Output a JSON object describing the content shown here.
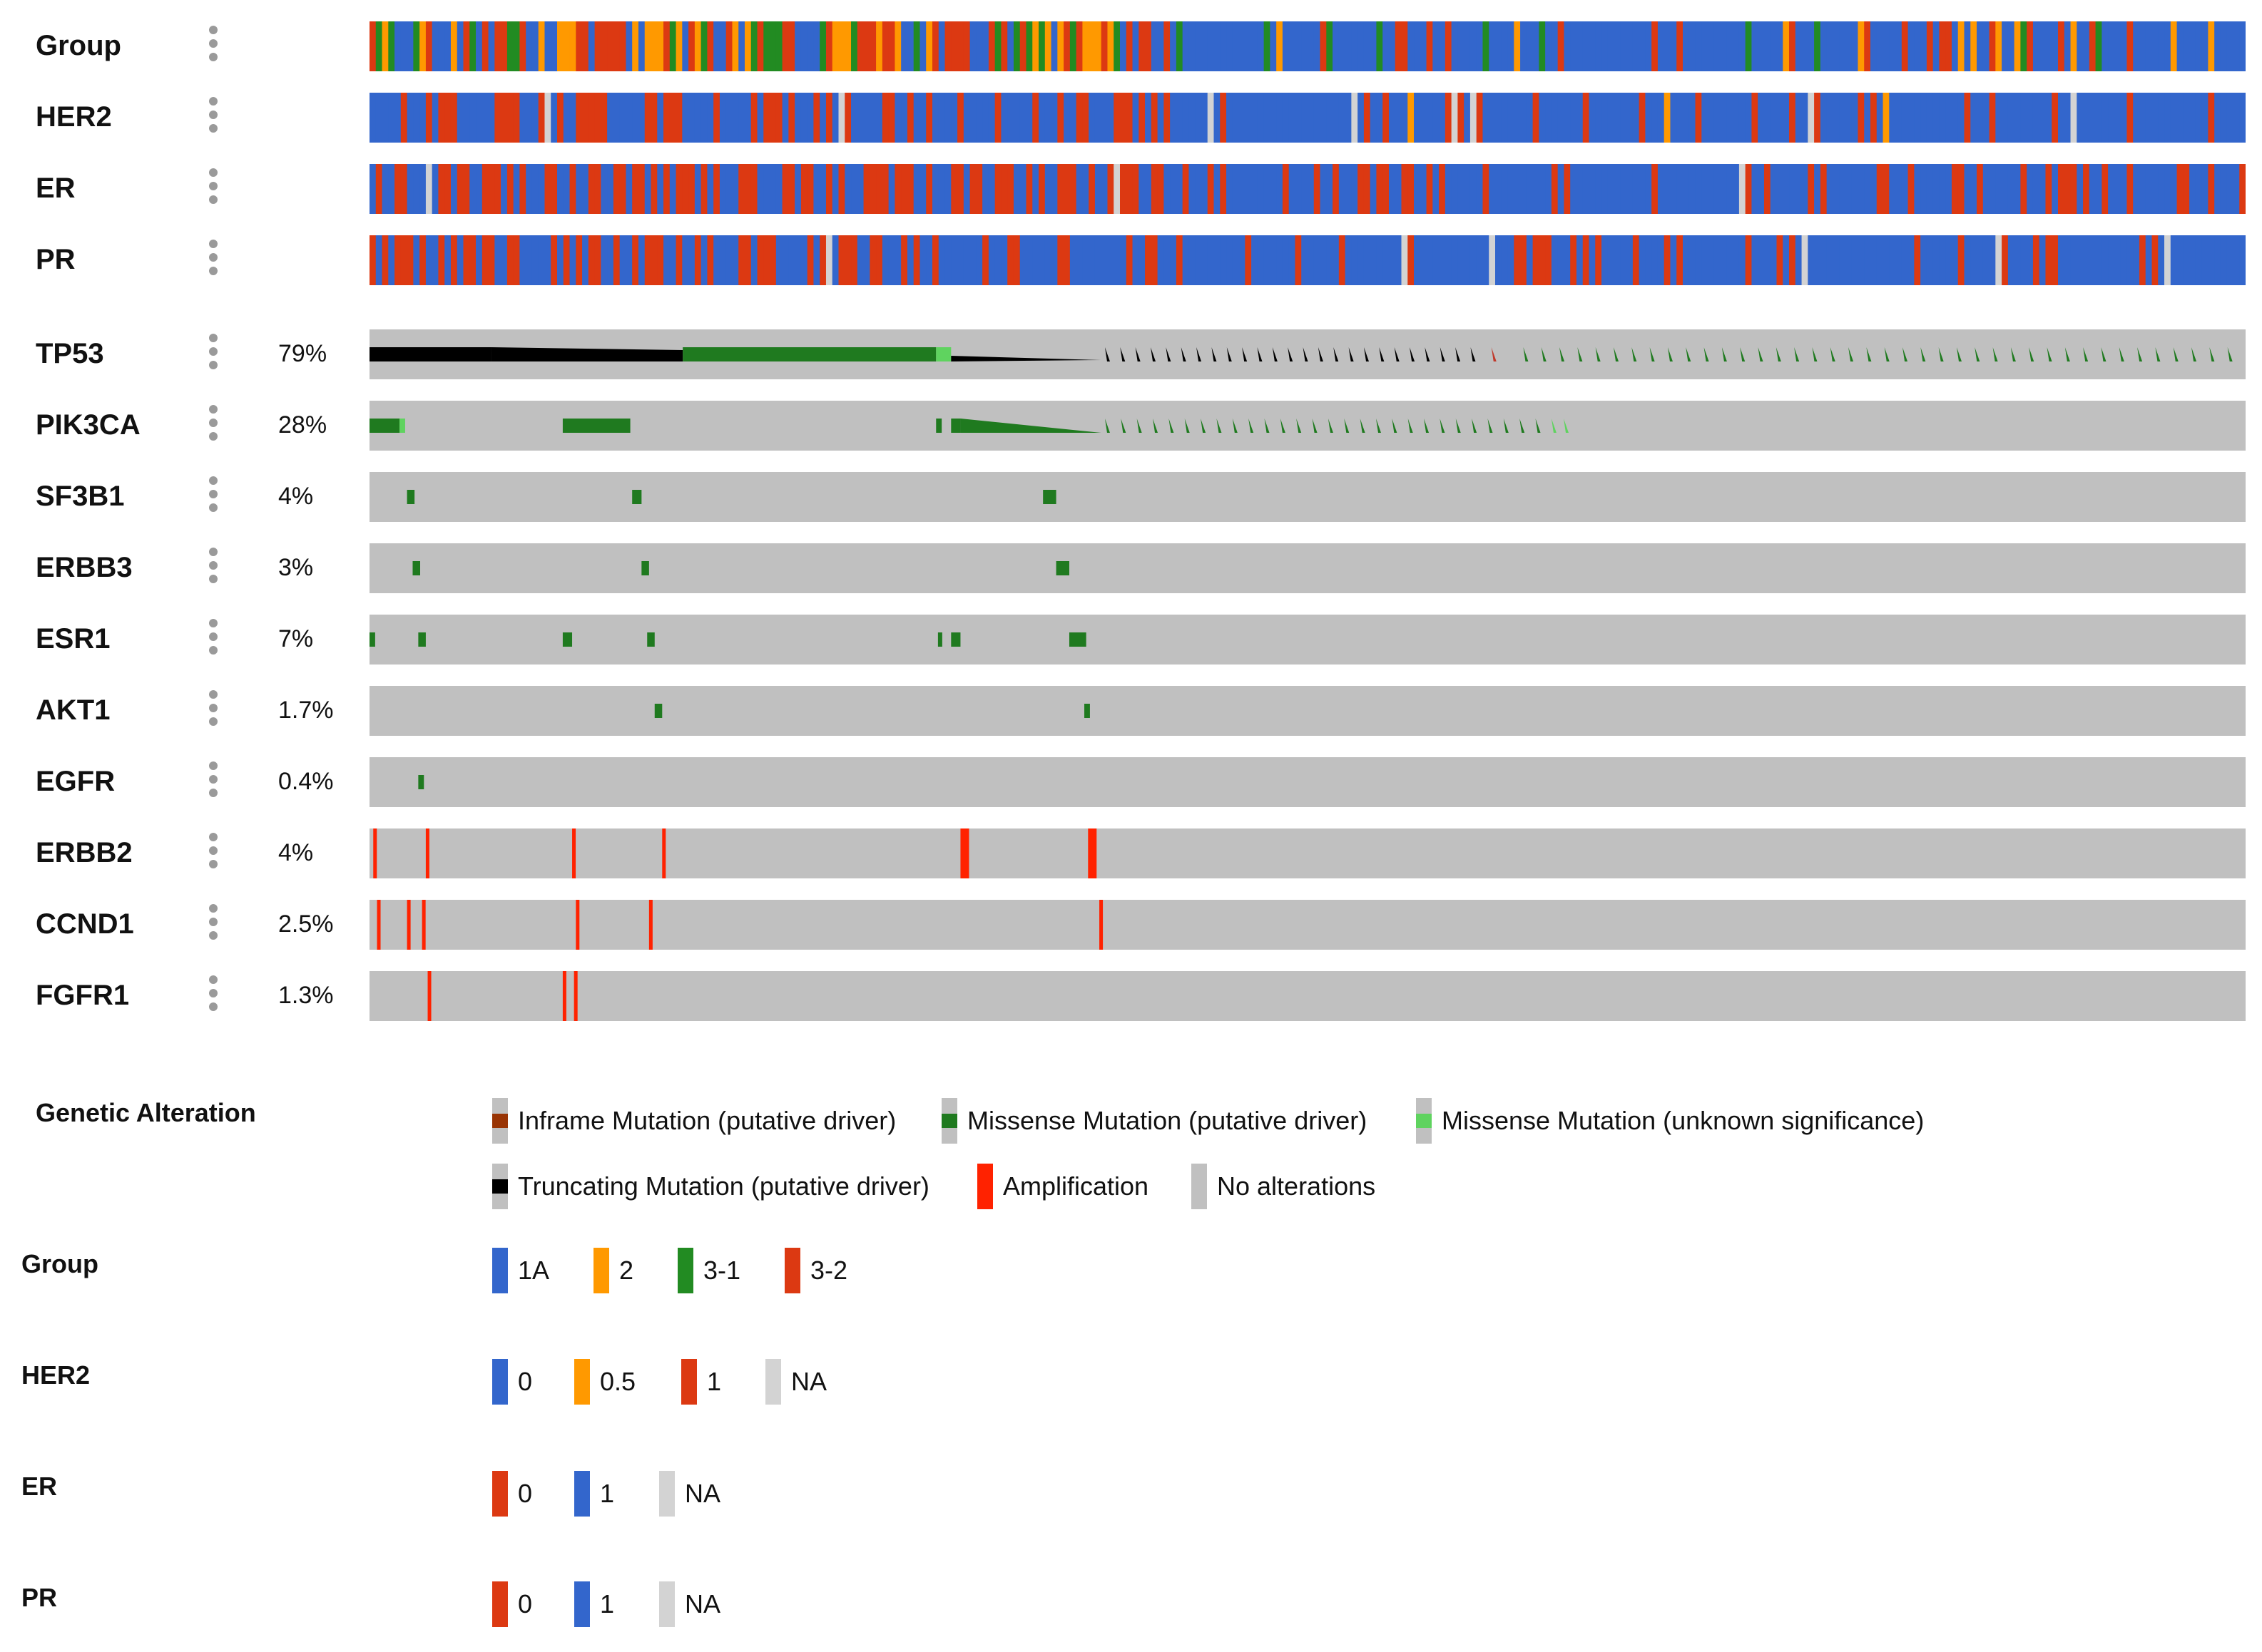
{
  "chart_data": {
    "type": "heatmap",
    "title": "",
    "clinical_tracks": [
      {
        "name": "Group"
      },
      {
        "name": "HER2"
      },
      {
        "name": "ER"
      },
      {
        "name": "PR"
      }
    ],
    "genes": [
      {
        "name": "TP53",
        "pct": "79%"
      },
      {
        "name": "PIK3CA",
        "pct": "28%"
      },
      {
        "name": "SF3B1",
        "pct": "4%"
      },
      {
        "name": "ERBB3",
        "pct": "3%"
      },
      {
        "name": "ESR1",
        "pct": "7%"
      },
      {
        "name": "AKT1",
        "pct": "1.7%"
      },
      {
        "name": "EGFR",
        "pct": "0.4%"
      },
      {
        "name": "ERBB2",
        "pct": "4%"
      },
      {
        "name": "CCND1",
        "pct": "2.5%"
      },
      {
        "name": "FGFR1",
        "pct": "1.3%"
      }
    ],
    "legend": {
      "genetic_alteration": {
        "title": "Genetic Alteration",
        "items": [
          {
            "label": "Inframe Mutation (putative driver)",
            "color": "#993404",
            "kind": "small"
          },
          {
            "label": "Missense Mutation (putative driver)",
            "color": "#1f7a1f",
            "kind": "small"
          },
          {
            "label": "Missense Mutation (unknown significance)",
            "color": "#5fd35f",
            "kind": "small"
          },
          {
            "label": "Truncating Mutation (putative driver)",
            "color": "#000000",
            "kind": "small"
          },
          {
            "label": "Amplification",
            "color": "#ff2200",
            "kind": "full"
          },
          {
            "label": "No alterations",
            "color": "#c0c0c0",
            "kind": "full"
          }
        ]
      },
      "group": {
        "title": "Group",
        "items": [
          {
            "label": "1A",
            "color": "#3366cc"
          },
          {
            "label": "2",
            "color": "#ff9900"
          },
          {
            "label": "3-1",
            "color": "#228b22"
          },
          {
            "label": "3-2",
            "color": "#dc3912"
          }
        ]
      },
      "her2": {
        "title": "HER2",
        "items": [
          {
            "label": "0",
            "color": "#3366cc"
          },
          {
            "label": "0.5",
            "color": "#ff9900"
          },
          {
            "label": "1",
            "color": "#dc3912"
          },
          {
            "label": "NA",
            "color": "#d3d3d3"
          }
        ]
      },
      "er": {
        "title": "ER",
        "items": [
          {
            "label": "0",
            "color": "#dc3912"
          },
          {
            "label": "1",
            "color": "#3366cc"
          },
          {
            "label": "NA",
            "color": "#d3d3d3"
          }
        ]
      },
      "pr": {
        "title": "PR",
        "items": [
          {
            "label": "0",
            "color": "#dc3912"
          },
          {
            "label": "1",
            "color": "#3366cc"
          },
          {
            "label": "NA",
            "color": "#d3d3d3"
          }
        ]
      }
    }
  }
}
